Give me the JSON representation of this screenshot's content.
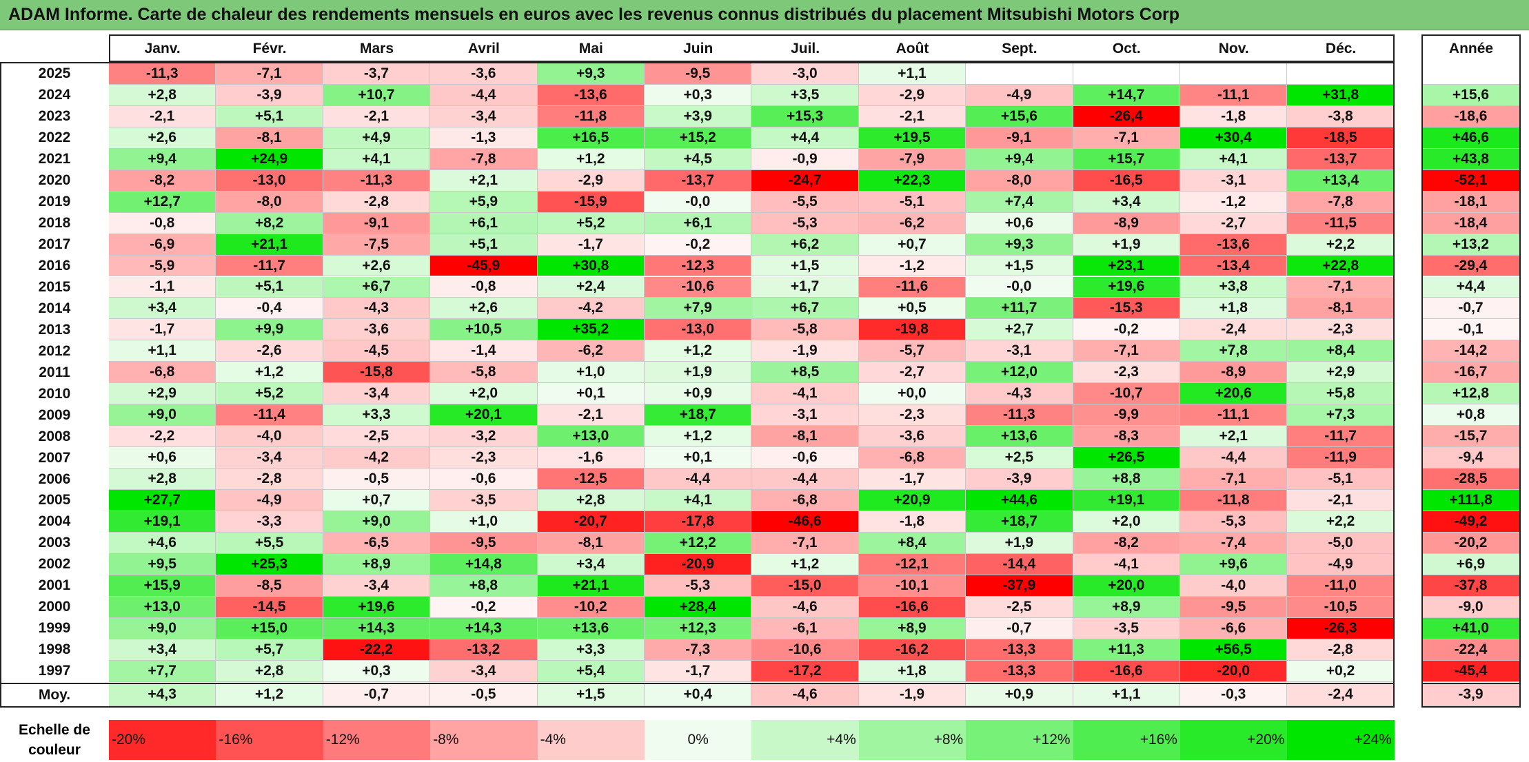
{
  "title": "ADAM Informe. Carte de chaleur des rendements mensuels en euros avec les revenus connus distribués du placement Mitsubishi Motors Corp",
  "scale_label": "Echelle de couleur",
  "avg_label": "Moy.",
  "year_col_label": "Année",
  "colors": {
    "title_bg": "#7ec87a",
    "neg_max": "#ff0000",
    "neutral": "#ffffff",
    "pos_max": "#00e000"
  },
  "scale": [
    {
      "label": "-20%",
      "value": -20,
      "align": "left"
    },
    {
      "label": "-16%",
      "value": -16,
      "align": "left"
    },
    {
      "label": "-12%",
      "value": -12,
      "align": "left"
    },
    {
      "label": "-8%",
      "value": -8,
      "align": "left"
    },
    {
      "label": "-4%",
      "value": -4,
      "align": "left"
    },
    {
      "label": "0%",
      "value": 0,
      "align": "center"
    },
    {
      "label": "+4%",
      "value": 4,
      "align": "right"
    },
    {
      "label": "+8%",
      "value": 8,
      "align": "right"
    },
    {
      "label": "+12%",
      "value": 12,
      "align": "right"
    },
    {
      "label": "+16%",
      "value": 16,
      "align": "right"
    },
    {
      "label": "+20%",
      "value": 20,
      "align": "right"
    },
    {
      "label": "+24%",
      "value": 24,
      "align": "right"
    }
  ],
  "chart_data": {
    "type": "heatmap",
    "title": "ADAM Informe. Carte de chaleur des rendements mensuels en euros avec les revenus connus distribués du placement Mitsubishi Motors Corp",
    "months": [
      "Janv.",
      "Févr.",
      "Mars",
      "Avril",
      "Mai",
      "Juin",
      "Juil.",
      "Août",
      "Sept.",
      "Oct.",
      "Nov.",
      "Déc."
    ],
    "years": [
      "2025",
      "2024",
      "2023",
      "2022",
      "2021",
      "2020",
      "2019",
      "2018",
      "2017",
      "2016",
      "2015",
      "2014",
      "2013",
      "2012",
      "2011",
      "2010",
      "2009",
      "2008",
      "2007",
      "2006",
      "2005",
      "2004",
      "2003",
      "2002",
      "2001",
      "2000",
      "1999",
      "1998",
      "1997"
    ],
    "values": [
      [
        "-11,3",
        "-7,1",
        "-3,7",
        "-3,6",
        "+9,3",
        "-9,5",
        "-3,0",
        "+1,1",
        "",
        "",
        "",
        ""
      ],
      [
        "+2,8",
        "-3,9",
        "+10,7",
        "-4,4",
        "-13,6",
        "+0,3",
        "+3,5",
        "-2,9",
        "-4,9",
        "+14,7",
        "-11,1",
        "+31,8"
      ],
      [
        "-2,1",
        "+5,1",
        "-2,1",
        "-3,4",
        "-11,8",
        "+3,9",
        "+15,3",
        "-2,1",
        "+15,6",
        "-26,4",
        "-1,8",
        "-3,8"
      ],
      [
        "+2,6",
        "-8,1",
        "+4,9",
        "-1,3",
        "+16,5",
        "+15,2",
        "+4,4",
        "+19,5",
        "-9,1",
        "-7,1",
        "+30,4",
        "-18,5"
      ],
      [
        "+9,4",
        "+24,9",
        "+4,1",
        "-7,8",
        "+1,2",
        "+4,5",
        "-0,9",
        "-7,9",
        "+9,4",
        "+15,7",
        "+4,1",
        "-13,7"
      ],
      [
        "-8,2",
        "-13,0",
        "-11,3",
        "+2,1",
        "-2,9",
        "-13,7",
        "-24,7",
        "+22,3",
        "-8,0",
        "-16,5",
        "-3,1",
        "+13,4"
      ],
      [
        "+12,7",
        "-8,0",
        "-2,8",
        "+5,9",
        "-15,9",
        "-0,0",
        "-5,5",
        "-5,1",
        "+7,4",
        "+3,4",
        "-1,2",
        "-7,8"
      ],
      [
        "-0,8",
        "+8,2",
        "-9,1",
        "+6,1",
        "+5,2",
        "+6,1",
        "-5,3",
        "-6,2",
        "+0,6",
        "-8,9",
        "-2,7",
        "-11,5"
      ],
      [
        "-6,9",
        "+21,1",
        "-7,5",
        "+5,1",
        "-1,7",
        "-0,2",
        "+6,2",
        "+0,7",
        "+9,3",
        "+1,9",
        "-13,6",
        "+2,2"
      ],
      [
        "-5,9",
        "-11,7",
        "+2,6",
        "-45,9",
        "+30,8",
        "-12,3",
        "+1,5",
        "-1,2",
        "+1,5",
        "+23,1",
        "-13,4",
        "+22,8"
      ],
      [
        "-1,1",
        "+5,1",
        "+6,7",
        "-0,8",
        "+2,4",
        "-10,6",
        "+1,7",
        "-11,6",
        "-0,0",
        "+19,6",
        "+3,8",
        "-7,1"
      ],
      [
        "+3,4",
        "-0,4",
        "-4,3",
        "+2,6",
        "-4,2",
        "+7,9",
        "+6,7",
        "+0,5",
        "+11,7",
        "-15,3",
        "+1,8",
        "-8,1"
      ],
      [
        "-1,7",
        "+9,9",
        "-3,6",
        "+10,5",
        "+35,2",
        "-13,0",
        "-5,8",
        "-19,8",
        "+2,7",
        "-0,2",
        "-2,4",
        "-2,3"
      ],
      [
        "+1,1",
        "-2,6",
        "-4,5",
        "-1,4",
        "-6,2",
        "+1,2",
        "-1,9",
        "-5,7",
        "-3,1",
        "-7,1",
        "+7,8",
        "+8,4"
      ],
      [
        "-6,8",
        "+1,2",
        "-15,8",
        "-5,8",
        "+1,0",
        "+1,9",
        "+8,5",
        "-2,7",
        "+12,0",
        "-2,3",
        "-8,9",
        "+2,9"
      ],
      [
        "+2,9",
        "+5,2",
        "-3,4",
        "+2,0",
        "+0,1",
        "+0,9",
        "-4,1",
        "+0,0",
        "-4,3",
        "-10,7",
        "+20,6",
        "+5,8"
      ],
      [
        "+9,0",
        "-11,4",
        "+3,3",
        "+20,1",
        "-2,1",
        "+18,7",
        "-3,1",
        "-2,3",
        "-11,3",
        "-9,9",
        "-11,1",
        "+7,3"
      ],
      [
        "-2,2",
        "-4,0",
        "-2,5",
        "-3,2",
        "+13,0",
        "+1,2",
        "-8,1",
        "-3,6",
        "+13,6",
        "-8,3",
        "+2,1",
        "-11,7"
      ],
      [
        "+0,6",
        "-3,4",
        "-4,2",
        "-2,3",
        "-1,6",
        "+0,1",
        "-0,6",
        "-6,8",
        "+2,5",
        "+26,5",
        "-4,4",
        "-11,9"
      ],
      [
        "+2,8",
        "-2,8",
        "-0,5",
        "-0,6",
        "-12,5",
        "-4,4",
        "-4,4",
        "-1,7",
        "-3,9",
        "+8,8",
        "-7,1",
        "-5,1"
      ],
      [
        "+27,7",
        "-4,9",
        "+0,7",
        "-3,5",
        "+2,8",
        "+4,1",
        "-6,8",
        "+20,9",
        "+44,6",
        "+19,1",
        "-11,8",
        "-2,1"
      ],
      [
        "+19,1",
        "-3,3",
        "+9,0",
        "+1,0",
        "-20,7",
        "-17,8",
        "-46,6",
        "-1,8",
        "+18,7",
        "+2,0",
        "-5,3",
        "+2,2"
      ],
      [
        "+4,6",
        "+5,5",
        "-6,5",
        "-9,5",
        "-8,1",
        "+12,2",
        "-7,1",
        "+8,4",
        "+1,9",
        "-8,2",
        "-7,4",
        "-5,0"
      ],
      [
        "+9,5",
        "+25,3",
        "+8,9",
        "+14,8",
        "+3,4",
        "-20,9",
        "+1,2",
        "-12,1",
        "-14,4",
        "-4,1",
        "+9,6",
        "-4,9"
      ],
      [
        "+15,9",
        "-8,5",
        "-3,4",
        "+8,8",
        "+21,1",
        "-5,3",
        "-15,0",
        "-10,1",
        "-37,9",
        "+20,0",
        "-4,0",
        "-11,0"
      ],
      [
        "+13,0",
        "-14,5",
        "+19,6",
        "-0,2",
        "-10,2",
        "+28,4",
        "-4,6",
        "-16,6",
        "-2,5",
        "+8,9",
        "-9,5",
        "-10,5"
      ],
      [
        "+9,0",
        "+15,0",
        "+14,3",
        "+14,3",
        "+13,6",
        "+12,3",
        "-6,1",
        "+8,9",
        "-0,7",
        "-3,5",
        "-6,6",
        "-26,3"
      ],
      [
        "+3,4",
        "+5,7",
        "-22,2",
        "-13,2",
        "+3,3",
        "-7,3",
        "-10,6",
        "-16,2",
        "-13,3",
        "+11,3",
        "+56,5",
        "-2,8"
      ],
      [
        "+7,7",
        "+2,8",
        "+0,3",
        "-3,4",
        "+5,4",
        "-1,7",
        "-17,2",
        "+1,8",
        "-13,3",
        "-16,6",
        "-20,0",
        "+0,2"
      ]
    ],
    "year_totals": [
      "",
      "+15,6",
      "-18,6",
      "+46,6",
      "+43,8",
      "-52,1",
      "-18,1",
      "-18,4",
      "+13,2",
      "-29,4",
      "+4,4",
      "-0,7",
      "-0,1",
      "-14,2",
      "-16,7",
      "+12,8",
      "+0,8",
      "-15,7",
      "-9,4",
      "-28,5",
      "+111,8",
      "-49,2",
      "-20,2",
      "+6,9",
      "-37,8",
      "-9,0",
      "+41,0",
      "-22,4",
      "-45,4"
    ],
    "averages": [
      "+4,3",
      "+1,2",
      "-0,7",
      "-0,5",
      "+1,5",
      "+0,4",
      "-4,6",
      "-1,9",
      "+0,9",
      "+1,1",
      "-0,3",
      "-2,4"
    ],
    "average_total": "-3,9"
  }
}
